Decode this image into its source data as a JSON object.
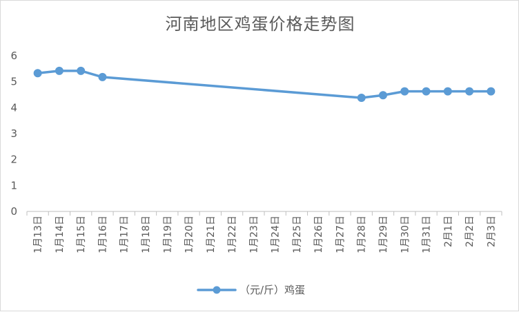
{
  "chart_data": {
    "type": "line",
    "title": "河南地区鸡蛋价格走势图",
    "categories": [
      "1月13日",
      "1月14日",
      "1月15日",
      "1月16日",
      "1月17日",
      "1月18日",
      "1月19日",
      "1月20日",
      "1月21日",
      "1月22日",
      "1月23日",
      "1月24日",
      "1月25日",
      "1月26日",
      "1月27日",
      "1月28日",
      "1月29日",
      "1月30日",
      "1月31日",
      "2月1日",
      "2月2日",
      "2月3日"
    ],
    "series": [
      {
        "name": "（元/斤）鸡蛋",
        "points": [
          {
            "category": "1月13日",
            "value": 5.33
          },
          {
            "category": "1月14日",
            "value": 5.42
          },
          {
            "category": "1月15日",
            "value": 5.42
          },
          {
            "category": "1月16日",
            "value": 5.18
          },
          {
            "category": "1月28日",
            "value": 4.38
          },
          {
            "category": "1月29日",
            "value": 4.48
          },
          {
            "category": "1月30日",
            "value": 4.63
          },
          {
            "category": "1月31日",
            "value": 4.63
          },
          {
            "category": "2月1日",
            "value": 4.63
          },
          {
            "category": "2月2日",
            "value": 4.63
          },
          {
            "category": "2月3日",
            "value": 4.63
          }
        ]
      }
    ],
    "y_ticks": [
      0,
      1,
      2,
      3,
      4,
      5,
      6
    ],
    "ylim": [
      0,
      6
    ],
    "grid": false,
    "legend": "bottom",
    "line_color": "#5b9bd5"
  }
}
